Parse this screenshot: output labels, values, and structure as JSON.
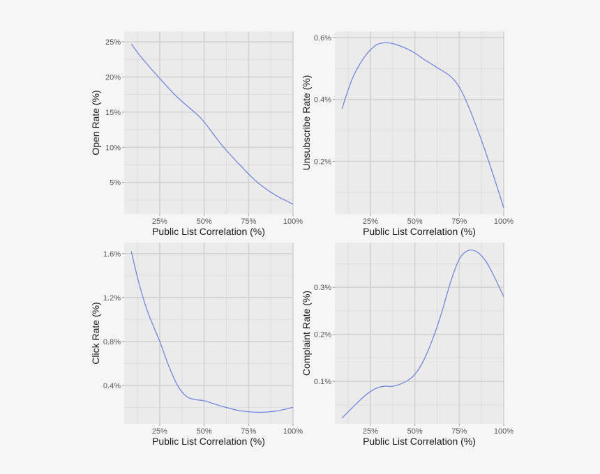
{
  "chart_data": [
    {
      "type": "line",
      "xlabel": "Public List Correlation (%)",
      "ylabel": "Open Rate (%)",
      "xlim": [
        5,
        100
      ],
      "ylim": [
        0.5,
        26.5
      ],
      "x_ticks": [
        25,
        50,
        75,
        100
      ],
      "x_tick_labels": [
        "25%",
        "50%",
        "75%",
        "100%"
      ],
      "y_ticks": [
        5,
        10,
        15,
        20,
        25
      ],
      "y_tick_labels": [
        "5%",
        "10%",
        "15%",
        "20%",
        "25%"
      ],
      "series": [
        {
          "color": "#6b7ee0",
          "x": [
            9,
            15,
            25,
            35,
            45,
            50,
            60,
            70,
            80,
            90,
            100
          ],
          "y": [
            24.7,
            22.7,
            19.8,
            17.1,
            14.9,
            13.6,
            10.3,
            7.5,
            5.0,
            3.2,
            1.9
          ]
        }
      ]
    },
    {
      "type": "line",
      "xlabel": "Public List Correlation (%)",
      "ylabel": "Unsubscribe Rate (%)",
      "xlim": [
        5,
        100
      ],
      "ylim": [
        0.03,
        0.62
      ],
      "x_ticks": [
        25,
        50,
        75,
        100
      ],
      "x_tick_labels": [
        "25%",
        "50%",
        "75%",
        "100%"
      ],
      "y_ticks": [
        0.2,
        0.4,
        0.6
      ],
      "y_tick_labels": [
        "0.2%",
        "0.4%",
        "0.6%"
      ],
      "series": [
        {
          "color": "#6b7ee0",
          "x": [
            9,
            15,
            22,
            28,
            33,
            38,
            45,
            50,
            55,
            62,
            70,
            75,
            80,
            88,
            95,
            100
          ],
          "y": [
            0.37,
            0.47,
            0.54,
            0.575,
            0.583,
            0.58,
            0.565,
            0.55,
            0.53,
            0.505,
            0.475,
            0.44,
            0.38,
            0.26,
            0.14,
            0.05
          ]
        }
      ]
    },
    {
      "type": "line",
      "xlabel": "Public List Correlation (%)",
      "ylabel": "Click Rate (%)",
      "xlim": [
        5,
        100
      ],
      "ylim": [
        0.05,
        1.7
      ],
      "x_ticks": [
        25,
        50,
        75,
        100
      ],
      "x_tick_labels": [
        "25%",
        "50%",
        "75%",
        "100%"
      ],
      "y_ticks": [
        0.4,
        0.8,
        1.2,
        1.6
      ],
      "y_tick_labels": [
        "0.4%",
        "0.8%",
        "1.2%",
        "1.6%"
      ],
      "series": [
        {
          "color": "#6b7ee0",
          "x": [
            9,
            13,
            18,
            25,
            30,
            35,
            40,
            45,
            50,
            60,
            70,
            80,
            90,
            100
          ],
          "y": [
            1.62,
            1.35,
            1.08,
            0.8,
            0.58,
            0.4,
            0.3,
            0.27,
            0.26,
            0.21,
            0.17,
            0.155,
            0.165,
            0.2
          ]
        }
      ]
    },
    {
      "type": "line",
      "xlabel": "Public List Correlation (%)",
      "ylabel": "Complaint Rate (%)",
      "xlim": [
        5,
        100
      ],
      "ylim": [
        0.01,
        0.395
      ],
      "x_ticks": [
        25,
        50,
        75,
        100
      ],
      "x_tick_labels": [
        "25%",
        "50%",
        "75%",
        "100%"
      ],
      "y_ticks": [
        0.1,
        0.2,
        0.3
      ],
      "y_tick_labels": [
        "0.1%",
        "0.2%",
        "0.3%"
      ],
      "series": [
        {
          "color": "#6b7ee0",
          "x": [
            9,
            15,
            22,
            28,
            33,
            38,
            45,
            50,
            55,
            60,
            65,
            70,
            75,
            80,
            85,
            90,
            95,
            100
          ],
          "y": [
            0.022,
            0.045,
            0.07,
            0.085,
            0.09,
            0.09,
            0.1,
            0.115,
            0.145,
            0.19,
            0.245,
            0.31,
            0.36,
            0.378,
            0.375,
            0.355,
            0.32,
            0.28
          ]
        }
      ]
    }
  ]
}
